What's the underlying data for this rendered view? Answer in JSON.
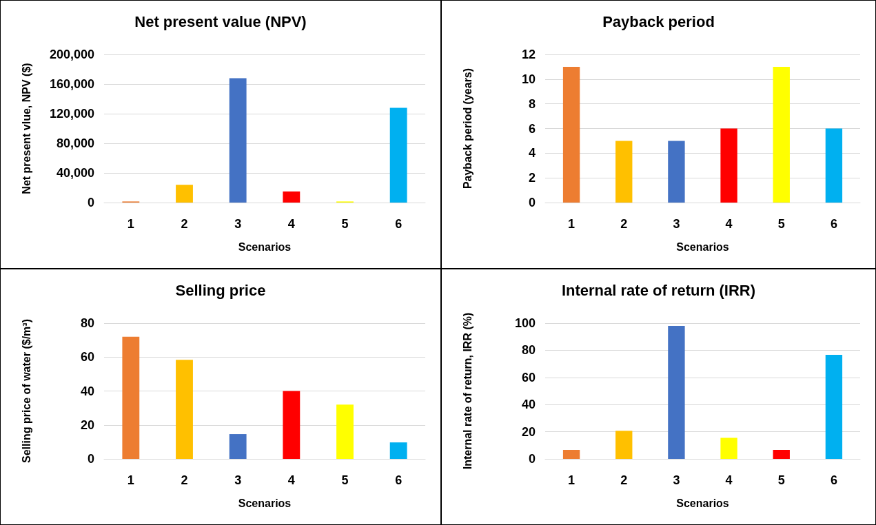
{
  "chart_data": [
    {
      "type": "bar",
      "title": "Net present value (NPV)",
      "xlabel": "Scenarios",
      "ylabel": "Net present vlue, NPV ($)",
      "categories": [
        "1",
        "2",
        "3",
        "4",
        "5",
        "6"
      ],
      "values": [
        1500,
        24000,
        168000,
        15000,
        1500,
        128000
      ],
      "colors": [
        "#ed7d31",
        "#ffc000",
        "#4472c4",
        "#ff0000",
        "#ffff00",
        "#00b0f0"
      ],
      "ylim": [
        0,
        200000
      ],
      "yticks": [
        0,
        {
          "value": 40000,
          "label": "40,000"
        },
        {
          "value": 80000,
          "label": "80,000"
        },
        {
          "value": 120000,
          "label": "120,000"
        },
        {
          "value": 160000,
          "label": "160,000"
        },
        {
          "value": 200000,
          "label": "200,000"
        }
      ],
      "grid": "y"
    },
    {
      "type": "bar",
      "title": "Payback period",
      "xlabel": "Scenarios",
      "ylabel": "Payback period (years)",
      "categories": [
        "1",
        "2",
        "3",
        "4",
        "5",
        "6"
      ],
      "values": [
        11,
        5,
        5,
        6,
        11,
        6
      ],
      "colors": [
        "#ed7d31",
        "#ffc000",
        "#4472c4",
        "#ff0000",
        "#ffff00",
        "#00b0f0"
      ],
      "ylim": [
        0,
        12
      ],
      "yticks": [
        0,
        2,
        4,
        6,
        8,
        10,
        12
      ],
      "grid": "y"
    },
    {
      "type": "bar",
      "title": "Selling price",
      "xlabel": "Scenarios",
      "ylabel": "Selling price of water ($/m³)",
      "categories": [
        "1",
        "2",
        "3",
        "4",
        "5",
        "6"
      ],
      "values": [
        72,
        58.4,
        14.6,
        40,
        32,
        9.7
      ],
      "colors": [
        "#ed7d31",
        "#ffc000",
        "#4472c4",
        "#ff0000",
        "#ffff00",
        "#00b0f0"
      ],
      "ylim": [
        0,
        80
      ],
      "yticks": [
        0,
        20,
        40,
        60,
        80
      ],
      "grid": "y"
    },
    {
      "type": "bar",
      "title": "Internal rate of return (IRR)",
      "xlabel": "Scenarios",
      "ylabel": "Internal rate of return, IRR (%)",
      "categories": [
        "1",
        "2",
        "3",
        "4",
        "5",
        "6"
      ],
      "values": [
        6.6,
        20.7,
        98,
        15.5,
        6.6,
        76.6
      ],
      "colors": [
        "#ed7d31",
        "#ffc000",
        "#4472c4",
        "#ffff00",
        "#ff0000",
        "#00b0f0"
      ],
      "ylim": [
        0,
        100
      ],
      "yticks": [
        0,
        20,
        40,
        60,
        80,
        100
      ],
      "grid": "y"
    }
  ]
}
